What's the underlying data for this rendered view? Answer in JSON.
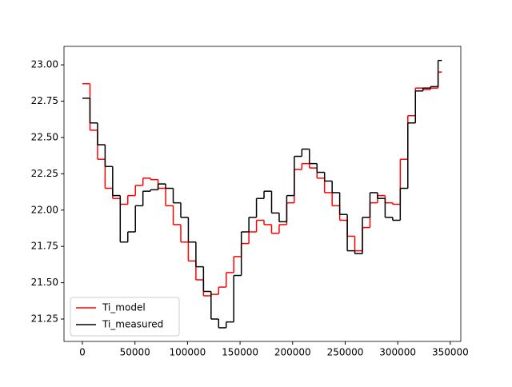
{
  "chart_data": {
    "type": "step",
    "x": [
      0,
      7200,
      14400,
      21600,
      28800,
      36000,
      43200,
      50400,
      57600,
      64800,
      72000,
      79200,
      86400,
      93600,
      100800,
      108000,
      115200,
      122400,
      129600,
      136800,
      144000,
      151200,
      158400,
      165600,
      172800,
      180000,
      187200,
      194400,
      201600,
      208800,
      216000,
      223200,
      230400,
      237600,
      244800,
      252000,
      259200,
      266400,
      273600,
      280800,
      288000,
      295200,
      302400,
      309600,
      316800,
      324000,
      331200,
      338400
    ],
    "series": [
      {
        "name": "Ti_model",
        "color": "#ff0000",
        "values": [
          22.87,
          22.55,
          22.35,
          22.15,
          22.08,
          22.04,
          22.1,
          22.17,
          22.22,
          22.21,
          22.15,
          22.03,
          21.9,
          21.78,
          21.65,
          21.52,
          21.41,
          21.42,
          21.47,
          21.57,
          21.68,
          21.77,
          21.85,
          21.93,
          21.9,
          21.84,
          21.9,
          22.05,
          22.28,
          22.32,
          22.29,
          22.22,
          22.12,
          22.03,
          21.93,
          21.82,
          21.72,
          21.88,
          22.05,
          22.1,
          22.05,
          22.04,
          22.35,
          22.65,
          22.84,
          22.83,
          22.84,
          22.95
        ]
      },
      {
        "name": "Ti_measured",
        "color": "#000000",
        "values": [
          22.77,
          22.6,
          22.45,
          22.3,
          22.1,
          21.78,
          21.85,
          22.03,
          22.13,
          22.14,
          22.18,
          22.15,
          22.05,
          21.95,
          21.78,
          21.61,
          21.44,
          21.25,
          21.19,
          21.23,
          21.55,
          21.85,
          21.95,
          22.08,
          22.13,
          21.98,
          21.92,
          22.1,
          22.37,
          22.42,
          22.32,
          22.26,
          22.2,
          22.12,
          21.97,
          21.72,
          21.7,
          21.95,
          22.12,
          22.08,
          21.95,
          21.93,
          22.15,
          22.6,
          22.82,
          22.84,
          22.85,
          23.03
        ]
      }
    ],
    "xlim": [
      -17500,
      360000
    ],
    "ylim": [
      21.096,
      23.127
    ],
    "xticks": [
      0,
      50000,
      100000,
      150000,
      200000,
      250000,
      300000,
      350000
    ],
    "yticks": [
      21.25,
      {
        "value": 21.5,
        "label": "21.50"
      },
      21.75,
      {
        "value": 22,
        "label": "22.00"
      },
      22.25,
      {
        "value": 22.5,
        "label": "22.50"
      },
      22.75,
      {
        "value": 23,
        "label": "23.00"
      }
    ],
    "legend": "lower left"
  }
}
